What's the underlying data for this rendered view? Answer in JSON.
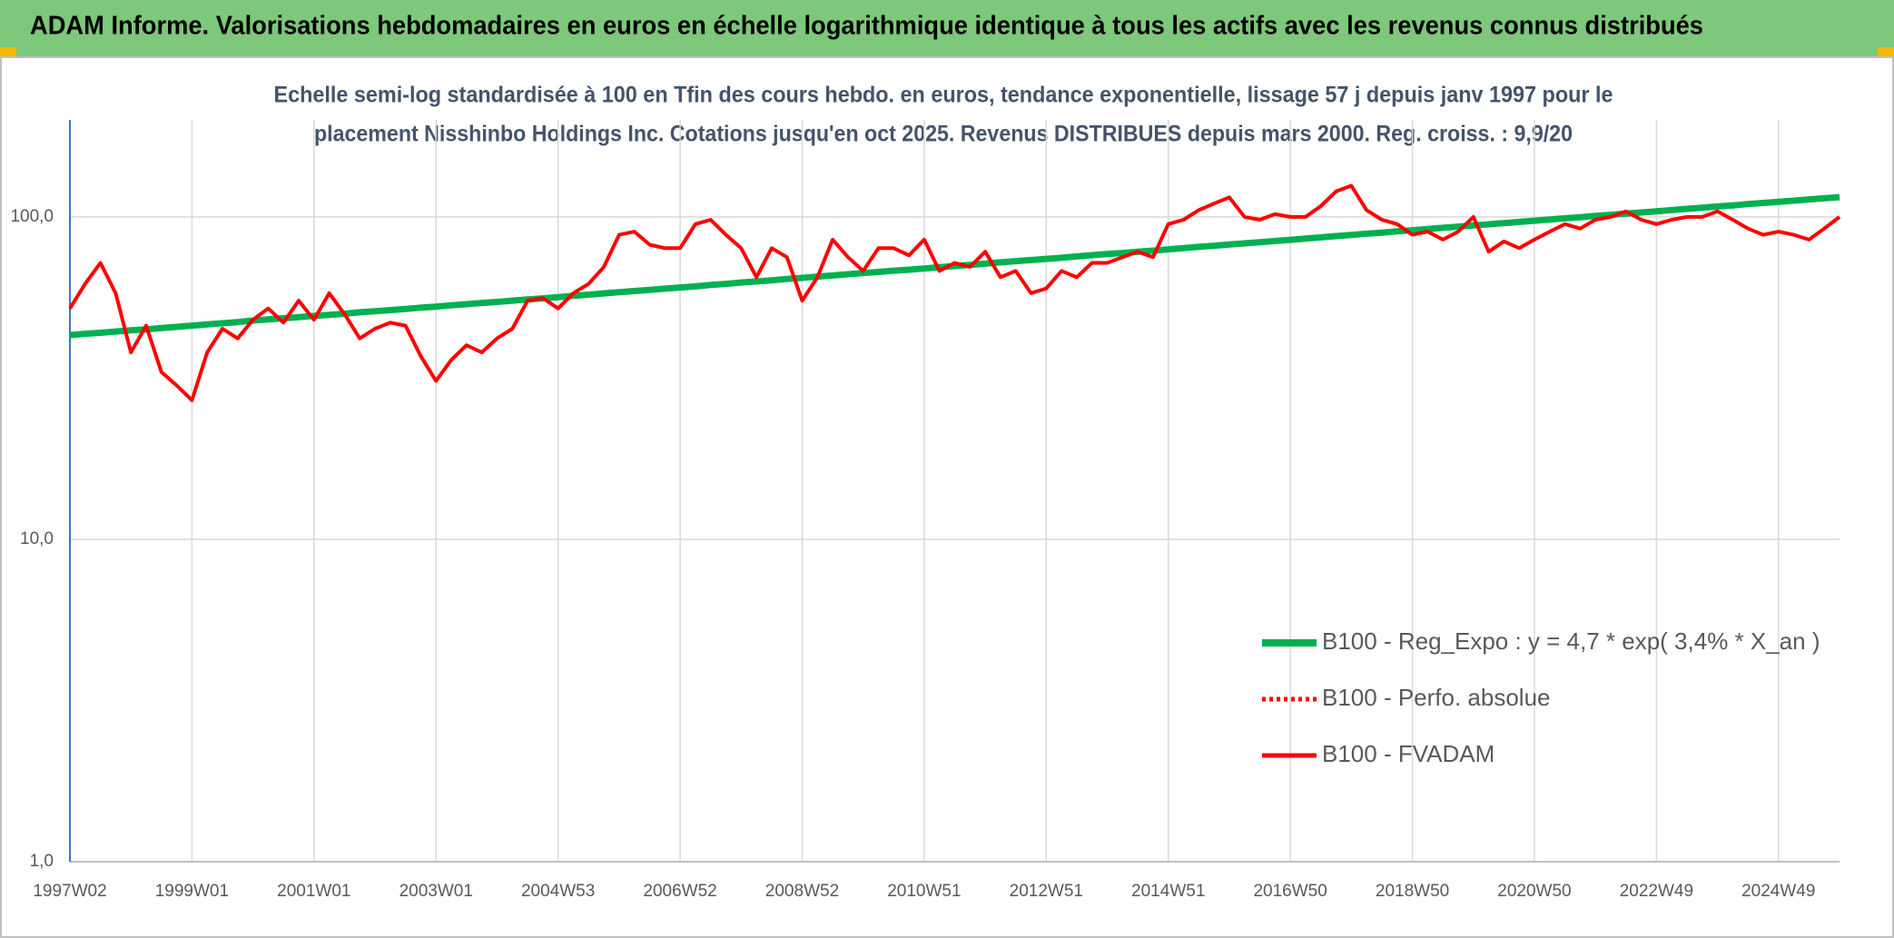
{
  "header": {
    "title": "ADAM Informe. Valorisations hebdomadaires en euros en échelle logarithmique identique à tous les actifs avec les revenus connus distribués"
  },
  "chart_data": {
    "type": "line",
    "subtitle": [
      "Echelle semi-log standardisée à 100 en Tfin des cours hebdo. en euros, tendance exponentielle, lissage 57 j depuis janv 1997 pour le",
      "placement Nisshinbo Holdings Inc. Cotations jusqu'en oct 2025. Revenus DISTRIBUES depuis mars 2000. Reg. croiss. : 9,9/20"
    ],
    "log_scale": true,
    "grid": true,
    "legend": "lower right",
    "ylim": [
      1,
      200
    ],
    "yticks": [
      {
        "value": 1,
        "label": "1,0"
      },
      {
        "value": 10,
        "label": "10,0"
      },
      {
        "value": 100,
        "label": "100,0"
      }
    ],
    "categories": [
      "1997W02",
      null,
      null,
      null,
      null,
      null,
      null,
      null,
      "1999W01",
      null,
      null,
      null,
      null,
      null,
      null,
      null,
      "2001W01",
      null,
      null,
      null,
      null,
      null,
      null,
      null,
      "2003W01",
      null,
      null,
      null,
      null,
      null,
      null,
      null,
      "2004W53",
      null,
      null,
      null,
      null,
      null,
      null,
      null,
      "2006W52",
      null,
      null,
      null,
      null,
      null,
      null,
      null,
      "2008W52",
      null,
      null,
      null,
      null,
      null,
      null,
      null,
      "2010W51",
      null,
      null,
      null,
      null,
      null,
      null,
      null,
      "2012W51",
      null,
      null,
      null,
      null,
      null,
      null,
      null,
      "2014W51",
      null,
      null,
      null,
      null,
      null,
      null,
      null,
      "2016W50",
      null,
      null,
      null,
      null,
      null,
      null,
      null,
      "2018W50",
      null,
      null,
      null,
      null,
      null,
      null,
      null,
      "2020W50",
      null,
      null,
      null,
      null,
      null,
      null,
      null,
      "2022W49",
      null,
      null,
      null,
      null,
      null,
      null,
      null,
      "2024W49",
      null,
      null,
      null,
      null
    ],
    "series": [
      {
        "name": "B100 - Reg_Expo : y = 4,7 * exp( 3,4% *  X_an )",
        "color": "#00b050",
        "style": "solid",
        "width": 7,
        "values": [
          43.0,
          43.4,
          43.7,
          44.1,
          44.5,
          44.8,
          45.2,
          45.6,
          46.0,
          46.4,
          46.8,
          47.2,
          47.7,
          48.1,
          48.5,
          48.9,
          49.3,
          49.7,
          50.1,
          50.6,
          51.0,
          51.4,
          51.8,
          52.3,
          52.7,
          53.2,
          53.6,
          54.1,
          54.5,
          55.0,
          55.5,
          55.9,
          56.4,
          56.9,
          57.4,
          57.9,
          58.4,
          58.9,
          59.4,
          59.9,
          60.4,
          60.9,
          61.5,
          62.0,
          62.6,
          63.1,
          63.6,
          64.2,
          64.7,
          65.3,
          65.8,
          66.4,
          67.0,
          67.5,
          68.1,
          68.6,
          69.2,
          69.8,
          70.4,
          71.0,
          71.6,
          72.3,
          72.9,
          73.5,
          74.1,
          74.7,
          75.4,
          76.1,
          76.7,
          77.3,
          78.0,
          78.6,
          79.3,
          80.0,
          80.7,
          81.4,
          82.1,
          82.8,
          83.5,
          84.2,
          84.9,
          85.7,
          86.4,
          87.2,
          87.9,
          88.7,
          89.4,
          90.2,
          90.9,
          91.7,
          92.5,
          93.3,
          94.1,
          94.9,
          95.7,
          96.5,
          97.3,
          98.1,
          99.0,
          99.8,
          100.7,
          101.5,
          102.4,
          103.2,
          104.1,
          105.0,
          105.9,
          106.8,
          107.7,
          108.6,
          109.6,
          110.5,
          111.4,
          112.3,
          113.3,
          114.2,
          115.2
        ]
      },
      {
        "name": "B100 - Perfo. absolue",
        "color": "#ff0000",
        "style": "dotted",
        "width": 4,
        "values": [
          null,
          null,
          null,
          null,
          null,
          null,
          null,
          null,
          null,
          null,
          null,
          null,
          null,
          null,
          null,
          null,
          null,
          null,
          null,
          null,
          null,
          null,
          null,
          null,
          null,
          null,
          null,
          null,
          null,
          null,
          null,
          null,
          null,
          null,
          null,
          null,
          null,
          null,
          null,
          null,
          null,
          null,
          null,
          null,
          null,
          null,
          null,
          null,
          null,
          null,
          null,
          null,
          null,
          null,
          null,
          null,
          null,
          null,
          null,
          null,
          null,
          null,
          null,
          null,
          null,
          null,
          null,
          null,
          null,
          null,
          null,
          null,
          null,
          null,
          null,
          null,
          null,
          null,
          null,
          null,
          null,
          null,
          null,
          null,
          null,
          null,
          null,
          null,
          null,
          null,
          null,
          null,
          null,
          null,
          null,
          null,
          null,
          null,
          null,
          null,
          null,
          null,
          null,
          null,
          null,
          null,
          null,
          null,
          null,
          null,
          null,
          null,
          null,
          null,
          null,
          null,
          null
        ]
      },
      {
        "name": "B100 - FVADAM",
        "color": "#ff0000",
        "style": "solid",
        "width": 4,
        "values": [
          52,
          62,
          72,
          58,
          38,
          46,
          33,
          30,
          27,
          38,
          45,
          42,
          48,
          52,
          47,
          55,
          48,
          58,
          50,
          42,
          45,
          47,
          46,
          37,
          31,
          36,
          40,
          38,
          42,
          45,
          55,
          56,
          52,
          58,
          62,
          70,
          88,
          90,
          82,
          80,
          80,
          95,
          98,
          88,
          80,
          65,
          80,
          75,
          55,
          65,
          85,
          75,
          68,
          80,
          80,
          76,
          85,
          68,
          72,
          70,
          78,
          65,
          68,
          58,
          60,
          68,
          65,
          72,
          72,
          75,
          78,
          75,
          95,
          98,
          105,
          110,
          115,
          100,
          98,
          102,
          100,
          100,
          108,
          120,
          125,
          105,
          98,
          95,
          88,
          90,
          85,
          90,
          100,
          78,
          84,
          80,
          85,
          90,
          95,
          92,
          98,
          100,
          104,
          98,
          95,
          98,
          100,
          100,
          104,
          98,
          92,
          88,
          90,
          88,
          85,
          92,
          100
        ]
      }
    ]
  }
}
